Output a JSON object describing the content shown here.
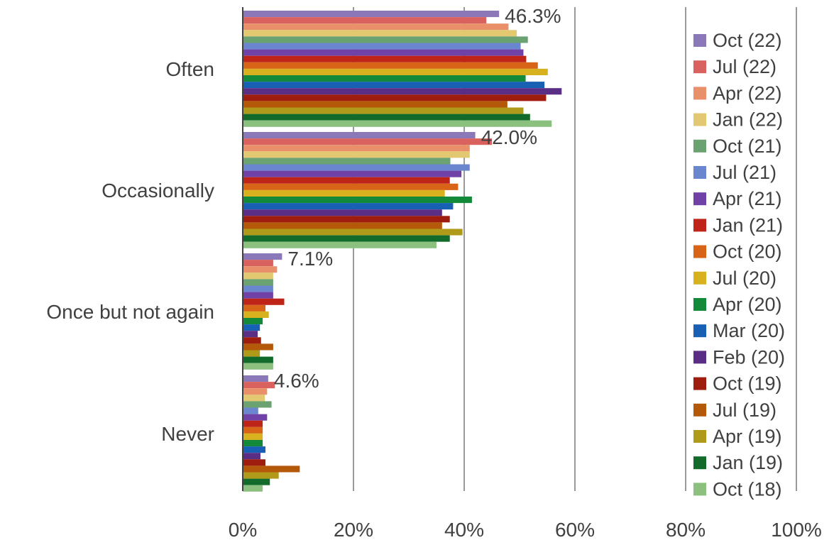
{
  "chart_data": {
    "type": "bar",
    "orientation": "horizontal",
    "categories": [
      "Often",
      "Occasionally",
      "Once but not again",
      "Never"
    ],
    "x_ticks": [
      "0%",
      "20%",
      "40%",
      "60%",
      "80%",
      "100%"
    ],
    "xlim": [
      0,
      100
    ],
    "grid": "vertical",
    "legend_position": "right",
    "series": [
      {
        "name": "Oct (22)",
        "color": "#8B78B8",
        "values": [
          46.3,
          42.0,
          7.1,
          4.6
        ]
      },
      {
        "name": "Jul (22)",
        "color": "#D9625F",
        "values": [
          44,
          45,
          5.5,
          5.8
        ]
      },
      {
        "name": "Apr (22)",
        "color": "#E9906A",
        "values": [
          48,
          41,
          6.2,
          4.4
        ]
      },
      {
        "name": "Jan (22)",
        "color": "#E3C872",
        "values": [
          49.5,
          41,
          5.5,
          4
        ]
      },
      {
        "name": "Oct (21)",
        "color": "#6AA271",
        "values": [
          51.5,
          37.5,
          5.5,
          5.2
        ]
      },
      {
        "name": "Jul (21)",
        "color": "#6A86CF",
        "values": [
          50.2,
          41,
          5.5,
          2.8
        ]
      },
      {
        "name": "Apr (21)",
        "color": "#7041A7",
        "values": [
          50.7,
          39.5,
          5.5,
          4.4
        ]
      },
      {
        "name": "Jan (21)",
        "color": "#BF2418",
        "values": [
          51.2,
          37.4,
          7.5,
          3.6
        ]
      },
      {
        "name": "Oct (20)",
        "color": "#D86417",
        "values": [
          53.3,
          38.9,
          4.1,
          3.6
        ]
      },
      {
        "name": "Jul (20)",
        "color": "#D7B21E",
        "values": [
          55.1,
          36.5,
          4.7,
          3.6
        ]
      },
      {
        "name": "Apr (20)",
        "color": "#138A3A",
        "values": [
          51.1,
          41.4,
          3.6,
          3.6
        ]
      },
      {
        "name": "Mar (20)",
        "color": "#1860B4",
        "values": [
          54.5,
          38,
          3.1,
          4.1
        ]
      },
      {
        "name": "Feb (20)",
        "color": "#5A2E84",
        "values": [
          57.6,
          36,
          2.7,
          3.2
        ]
      },
      {
        "name": "Oct (19)",
        "color": "#9E1D0F",
        "values": [
          54.8,
          37.4,
          3.3,
          4.1
        ]
      },
      {
        "name": "Jul (19)",
        "color": "#B4580A",
        "values": [
          47.8,
          36,
          5.5,
          10.3
        ]
      },
      {
        "name": "Apr (19)",
        "color": "#B09A1A",
        "values": [
          50.7,
          39.7,
          3.1,
          6.5
        ]
      },
      {
        "name": "Jan (19)",
        "color": "#126B2A",
        "values": [
          51.9,
          37.4,
          5.5,
          4.9
        ]
      },
      {
        "name": "Oct (18)",
        "color": "#8CC07E",
        "values": [
          55.8,
          35,
          5.5,
          3.6
        ]
      }
    ],
    "data_labels": [
      {
        "category": 0,
        "text": "46.3%"
      },
      {
        "category": 1,
        "text": "42.0%"
      },
      {
        "category": 2,
        "text": "7.1%"
      },
      {
        "category": 3,
        "text": "4.6%"
      }
    ]
  }
}
